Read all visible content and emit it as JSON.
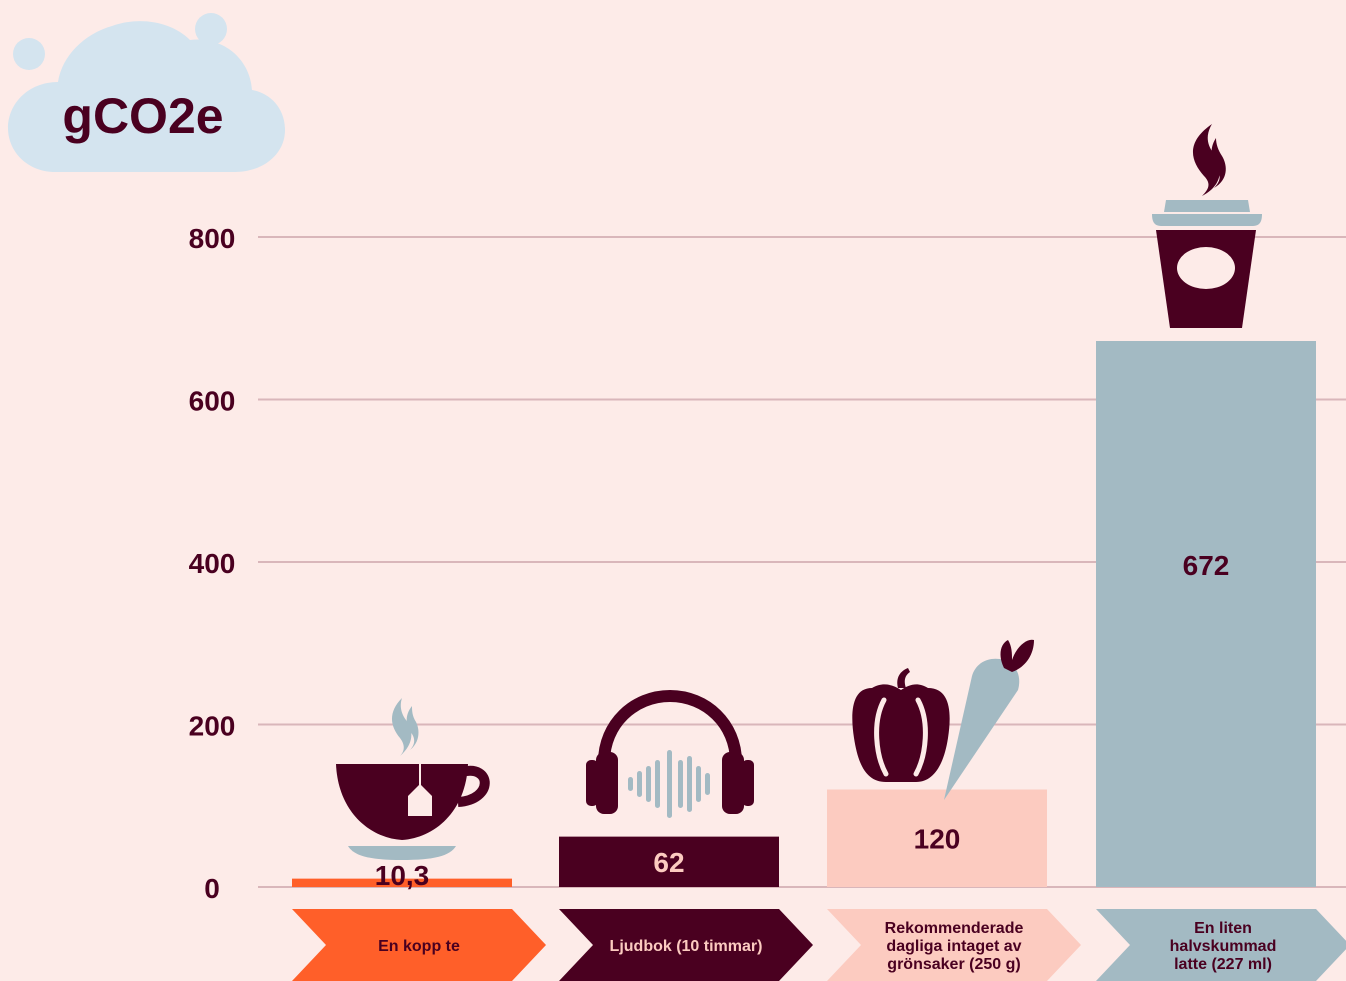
{
  "colors": {
    "background": "#fdebe8",
    "dark": "#4a0020",
    "orange": "#ff5f29",
    "pink": "#fccbc0",
    "blue": "#a3bac3",
    "cloud": "#d4e4ef",
    "grid": "#d9b6ba"
  },
  "chart_data": {
    "type": "bar",
    "title": "",
    "unit_label": "gCO2e",
    "xlabel": "",
    "ylabel": "",
    "ylim": [
      0,
      800
    ],
    "yticks": [
      0,
      200,
      400,
      600,
      800
    ],
    "grid": true,
    "categories": [
      "En kopp te",
      "Ljudbok (10 timmar)",
      "Rekommenderade dagliga intaget av grönsaker (250 g)",
      "En liten halvskummad latte (227 ml)"
    ],
    "category_label_lines": [
      [
        "En kopp te"
      ],
      [
        "Ljudbok (10 timmar)"
      ],
      [
        "Rekommenderade",
        "dagliga intaget av",
        "grönsaker (250 g)"
      ],
      [
        "En liten",
        "halvskummad",
        "latte (227 ml)"
      ]
    ],
    "values": [
      10.3,
      62,
      120,
      672
    ],
    "value_labels": [
      "10,3",
      "62",
      "120",
      "672"
    ],
    "bar_colors": [
      "#ff5f29",
      "#4a0020",
      "#fccbc0",
      "#a3bac3"
    ],
    "value_label_colors": [
      "#4a0020",
      "#fccbc0",
      "#4a0020",
      "#4a0020"
    ],
    "icons": [
      "tea-cup-icon",
      "headphones-icon",
      "vegetables-icon",
      "latte-cup-icon"
    ]
  }
}
